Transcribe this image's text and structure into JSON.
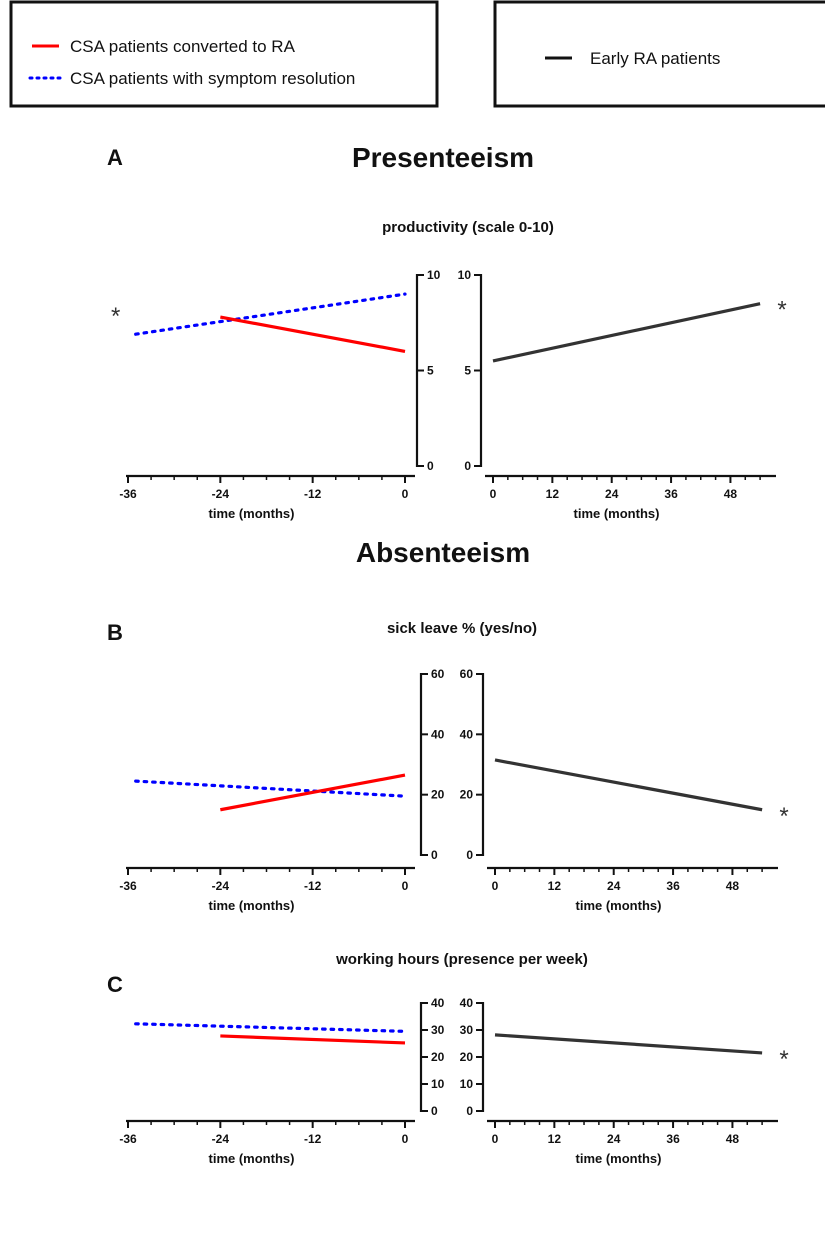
{
  "legends": [
    {
      "entries": [
        {
          "label": "CSA patients converted to RA",
          "color": "#ff0000",
          "style": "solid"
        },
        {
          "label": "CSA patients with symptom resolution",
          "color": "#0000ff",
          "style": "dotted"
        }
      ]
    },
    {
      "entries": [
        {
          "label": "Early RA patients",
          "color": "#333333",
          "style": "solid"
        }
      ]
    }
  ],
  "headings": {
    "presenteeism": "Presenteeism",
    "absenteeism": "Absenteeism"
  },
  "significance_marker": "*",
  "chart_data": [
    {
      "panel": "A",
      "type": "line",
      "title": "productivity (scale 0-10)",
      "left_plot": {
        "xlabel": "time (months)",
        "xlim": [
          -36,
          0
        ],
        "xticks": [
          -36,
          -24,
          -12,
          0
        ],
        "ylim": [
          0,
          10
        ],
        "yticks": [
          0,
          5,
          10
        ],
        "y_axis_side": "right",
        "series": [
          {
            "name": "CSA patients with symptom resolution",
            "color": "#0000ff",
            "style": "dotted",
            "x": [
              -35,
              0
            ],
            "y": [
              6.9,
              9.0
            ],
            "marker": "*"
          },
          {
            "name": "CSA patients converted to RA",
            "color": "#ff0000",
            "style": "solid",
            "x": [
              -24,
              0
            ],
            "y": [
              7.8,
              6.0
            ]
          }
        ]
      },
      "right_plot": {
        "xlabel": "time (months)",
        "xlim": [
          0,
          56
        ],
        "xticks": [
          0,
          12,
          24,
          36,
          48
        ],
        "ylim": [
          0,
          10
        ],
        "yticks": [
          0,
          5,
          10
        ],
        "y_axis_side": "left",
        "series": [
          {
            "name": "Early RA patients",
            "color": "#333333",
            "style": "solid",
            "x": [
              0,
              54
            ],
            "y": [
              5.5,
              8.5
            ],
            "marker": "*"
          }
        ]
      }
    },
    {
      "panel": "B",
      "type": "line",
      "title": "sick leave % (yes/no)",
      "left_plot": {
        "xlabel": "time (months)",
        "xlim": [
          -36,
          0
        ],
        "xticks": [
          -36,
          -24,
          -12,
          0
        ],
        "ylim": [
          0,
          60
        ],
        "yticks": [
          0,
          20,
          40,
          60
        ],
        "y_axis_side": "right",
        "series": [
          {
            "name": "CSA patients with symptom resolution",
            "color": "#0000ff",
            "style": "dotted",
            "x": [
              -35,
              0
            ],
            "y": [
              24.5,
              19.5
            ]
          },
          {
            "name": "CSA patients converted to RA",
            "color": "#ff0000",
            "style": "solid",
            "x": [
              -24,
              0
            ],
            "y": [
              15,
              26.5
            ]
          }
        ]
      },
      "right_plot": {
        "xlabel": "time (months)",
        "xlim": [
          0,
          56
        ],
        "xticks": [
          0,
          12,
          24,
          36,
          48
        ],
        "ylim": [
          0,
          60
        ],
        "yticks": [
          0,
          20,
          40,
          60
        ],
        "y_axis_side": "left",
        "series": [
          {
            "name": "Early RA patients",
            "color": "#333333",
            "style": "solid",
            "x": [
              0,
              54
            ],
            "y": [
              31.5,
              15
            ],
            "marker": "*"
          }
        ]
      }
    },
    {
      "panel": "C",
      "type": "line",
      "title": "working hours (presence per week)",
      "left_plot": {
        "xlabel": "time (months)",
        "xlim": [
          -36,
          0
        ],
        "xticks": [
          -36,
          -24,
          -12,
          0
        ],
        "ylim": [
          0,
          40
        ],
        "yticks": [
          0,
          10,
          20,
          30,
          40
        ],
        "y_axis_side": "right",
        "series": [
          {
            "name": "CSA patients with symptom resolution",
            "color": "#0000ff",
            "style": "dotted",
            "x": [
              -35,
              0
            ],
            "y": [
              32.3,
              29.5
            ]
          },
          {
            "name": "CSA patients converted to RA",
            "color": "#ff0000",
            "style": "solid",
            "x": [
              -24,
              0
            ],
            "y": [
              27.8,
              25.2
            ]
          }
        ]
      },
      "right_plot": {
        "xlabel": "time (months)",
        "xlim": [
          0,
          56
        ],
        "xticks": [
          0,
          12,
          24,
          36,
          48
        ],
        "ylim": [
          0,
          40
        ],
        "yticks": [
          0,
          10,
          20,
          30,
          40
        ],
        "y_axis_side": "left",
        "series": [
          {
            "name": "Early RA patients",
            "color": "#333333",
            "style": "solid",
            "x": [
              0,
              54
            ],
            "y": [
              28.2,
              21.5
            ],
            "marker": "*"
          }
        ]
      }
    }
  ]
}
